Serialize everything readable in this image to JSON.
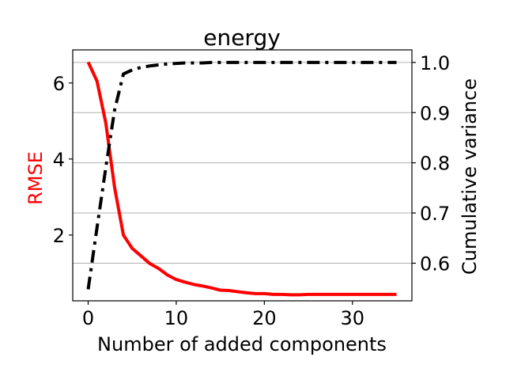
{
  "chart_data": {
    "type": "line",
    "title": "energy",
    "xlabel": "Number of added components",
    "ylabel_left": "RMSE",
    "ylabel_right": "Cumulative variance",
    "xlim": [
      -1.75,
      36.75
    ],
    "ylim_left": [
      0.27,
      6.87
    ],
    "ylim_right": [
      0.525,
      1.025
    ],
    "x_ticks": [
      0,
      10,
      20,
      30
    ],
    "y_left_ticks": [
      2,
      4,
      6
    ],
    "y_right_ticks": [
      0.6,
      0.7,
      0.8,
      0.9,
      1.0
    ],
    "y_right_tick_labels": [
      "0.6",
      "0.7",
      "0.8",
      "0.9",
      "1.0"
    ],
    "grid": "horizontal lines at right-axis ticks",
    "colors": {
      "rmse": "#ff0000",
      "variance": "#000000",
      "grid": "#b0b0b0"
    },
    "series": [
      {
        "axis": "left",
        "color": "#ff0000",
        "linestyle": "solid",
        "x": [
          0,
          1,
          2,
          3,
          4,
          5,
          6,
          7,
          8,
          9,
          10,
          11,
          12,
          13,
          14,
          15,
          16,
          17,
          18,
          19,
          20,
          21,
          22,
          23,
          24,
          25,
          26,
          27,
          28,
          29,
          30,
          31,
          32,
          33,
          34,
          35
        ],
        "values": [
          6.55,
          6.05,
          4.95,
          3.25,
          2.0,
          1.65,
          1.45,
          1.25,
          1.12,
          0.95,
          0.83,
          0.76,
          0.7,
          0.66,
          0.61,
          0.55,
          0.54,
          0.51,
          0.48,
          0.46,
          0.46,
          0.44,
          0.44,
          0.43,
          0.43,
          0.44,
          0.44,
          0.44,
          0.44,
          0.44,
          0.44,
          0.44,
          0.44,
          0.44,
          0.44,
          0.44
        ]
      },
      {
        "axis": "right",
        "color": "#000000",
        "linestyle": "dashdot",
        "x": [
          0,
          1,
          2,
          3,
          4,
          5,
          6,
          7,
          8,
          9,
          10,
          11,
          12,
          13,
          14,
          15,
          16,
          17,
          18,
          19,
          20,
          21,
          22,
          23,
          24,
          25,
          26,
          27,
          28,
          29,
          30,
          31,
          32,
          33,
          34,
          35
        ],
        "values": [
          0.548,
          0.67,
          0.79,
          0.905,
          0.977,
          0.985,
          0.99,
          0.993,
          0.995,
          0.997,
          0.998,
          0.999,
          0.999,
          0.999,
          1.0,
          1.0,
          1.0,
          1.0,
          1.0,
          1.0,
          1.0,
          1.0,
          1.0,
          1.0,
          1.0,
          1.0,
          1.0,
          1.0,
          1.0,
          1.0,
          1.0,
          1.0,
          1.0,
          1.0,
          1.0,
          1.0
        ]
      }
    ]
  }
}
